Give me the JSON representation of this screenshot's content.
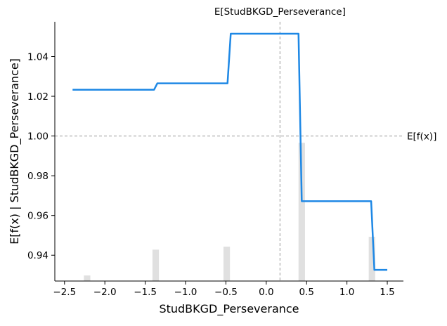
{
  "chart_data": {
    "type": "line",
    "xlabel": "StudBKGD_Perseverance",
    "ylabel": "E[f(x) | StudBKGD_Perseverance]",
    "xlim": [
      -2.62,
      1.7
    ],
    "ylim": [
      0.927,
      1.0575
    ],
    "x_ticks": [
      -2.5,
      -2.0,
      -1.5,
      -1.0,
      -0.5,
      0.0,
      0.5,
      1.0,
      1.5
    ],
    "x_tick_labels": [
      "−2.5",
      "−2.0",
      "−1.5",
      "−1.0",
      "−0.5",
      "0.0",
      "0.5",
      "1.0",
      "1.5"
    ],
    "y_ticks": [
      0.94,
      0.96,
      0.98,
      1.0,
      1.02,
      1.04
    ],
    "y_tick_labels": [
      "0.94",
      "0.96",
      "0.98",
      "1.00",
      "1.02",
      "1.04"
    ],
    "series": [
      {
        "color": "#1e88e5",
        "x": [
          -2.4,
          -1.39,
          -1.35,
          -0.48,
          -0.44,
          0.4,
          0.44,
          1.3,
          1.34,
          1.5
        ],
        "y": [
          1.0233,
          1.0233,
          1.0265,
          1.0265,
          1.0515,
          1.0515,
          0.9672,
          0.9672,
          0.9326,
          0.9326
        ]
      }
    ],
    "histogram": {
      "color": "#e0e0e0",
      "x": [
        -2.22,
        -1.37,
        -0.49,
        0.44,
        1.31
      ],
      "heights": [
        0.0028,
        0.0158,
        0.0173,
        0.0696,
        0.0223
      ]
    },
    "reference_lines": [
      {
        "orientation": "horizontal",
        "value": 1.0,
        "label": "E[f(x)]",
        "color": "#999999"
      },
      {
        "orientation": "vertical",
        "value": 0.17,
        "label": "E[StudBKGD_Perseverance]",
        "color": "#999999"
      }
    ],
    "grid": false
  }
}
